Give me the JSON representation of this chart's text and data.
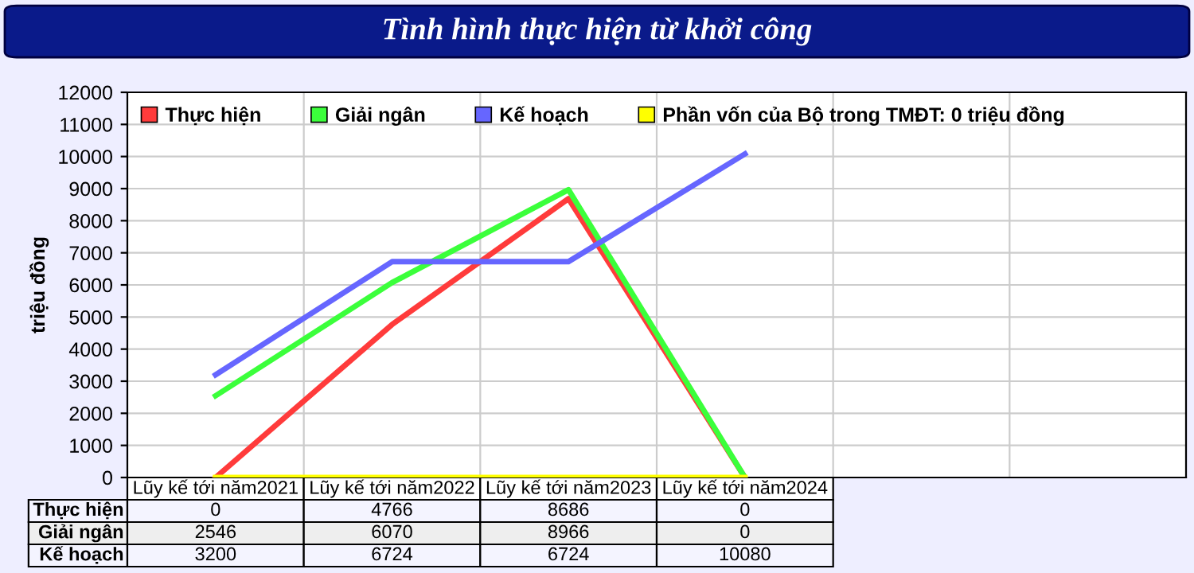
{
  "chart_data": {
    "type": "line",
    "title": "Tình hình thực hiện từ khởi công",
    "ylabel": "triệu đồng",
    "categories": [
      "Lũy kế tới năm2021",
      "Lũy kế tới năm2022",
      "Lũy kế tới năm2023",
      "Lũy kế tới năm2024",
      null,
      null
    ],
    "series": [
      {
        "name": "Thực hiện",
        "color": "#ff3b3b",
        "values": [
          0,
          4766,
          8686,
          0,
          null,
          null
        ],
        "value_labels": [
          "0",
          "4766",
          "8686",
          "0",
          null,
          null
        ]
      },
      {
        "name": "Giải ngân",
        "color": "#3bff3b",
        "values": [
          2546,
          6070,
          8966,
          0,
          null,
          null
        ],
        "value_labels": [
          "2546",
          "6070",
          "8966",
          "0",
          null,
          null
        ]
      },
      {
        "name": "Kế hoạch",
        "color": "#6666ff",
        "values": [
          3200,
          6724,
          6724,
          10080,
          null,
          null
        ],
        "value_labels": [
          "3200",
          "6724",
          "6724",
          "10080",
          null,
          null
        ]
      },
      {
        "name": "Phần vốn của Bộ trong TMĐT: 0 triệu đồng",
        "color": "#ffff00",
        "values": [
          0,
          0,
          0,
          0,
          null,
          null
        ]
      }
    ],
    "ylim": [
      0,
      12000
    ],
    "yticks": [
      0,
      1000,
      2000,
      3000,
      4000,
      5000,
      6000,
      7000,
      8000,
      9000,
      10000,
      11000,
      12000
    ],
    "grid": true,
    "legend": "top left",
    "marker": "none",
    "line_style": "solid"
  }
}
